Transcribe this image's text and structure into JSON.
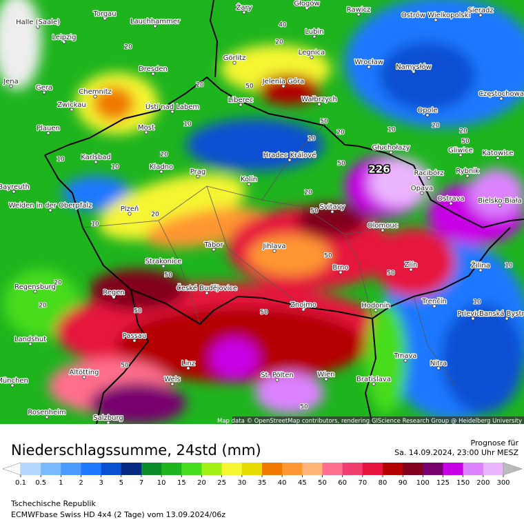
{
  "map": {
    "cities": [
      "Halle (Saale)",
      "Torgau",
      "Lauchhammer",
      "Żary",
      "Głogów",
      "Rawicz",
      "Ostrów Wielkopolski",
      "Sieradz",
      "Leipzig",
      "Lubin",
      "Legnica",
      "Görlitz",
      "Wrocław",
      "Namysłów",
      "Dresden",
      "Jena",
      "Gera",
      "Chemnitz",
      "Jelenia Góra",
      "Zwickau",
      "Liberec",
      "Wałbrzych",
      "Ústí nad Labem",
      "Częstochowa",
      "Opole",
      "Plauen",
      "Most",
      "Hradec Králové",
      "Głuchołazy",
      "Gliwice",
      "Katowice",
      "Karlsbad",
      "Kladno",
      "Prag",
      "Racibórz",
      "Rybnik",
      "Kolín",
      "Opava",
      "Bayreuth",
      "Weiden in der Oberpfalz",
      "Plzeň",
      "Svitavy",
      "Ostrava",
      "Bielsko-Biała",
      "Olomouc",
      "Tábor",
      "Jihlava",
      "Brno",
      "Zlín",
      "Žilina",
      "Strakonice",
      "Regensburg",
      "České Budějovice",
      "Regen",
      "Znojmo",
      "Hodonín",
      "Trenčín",
      "Prievidza",
      "Banská Bystrica",
      "Passau",
      "Landshut",
      "Trnava",
      "Nitra",
      "Linz",
      "Altötting",
      "Wels",
      "St. Pölten",
      "Wien",
      "Bratislava",
      "München",
      "Rosenheim",
      "Salzburg"
    ],
    "contour_labels": [
      20,
      20,
      40,
      20,
      50,
      10,
      10,
      20,
      50,
      10,
      10,
      20,
      50,
      226,
      10,
      20,
      20,
      50,
      20,
      10,
      50,
      50,
      50,
      20,
      20,
      50,
      50,
      50,
      50,
      10,
      10,
      20,
      50
    ],
    "attribution": "Map data © OpenStreetMap contributors, rendering GIScience Research Group @ Heidelberg University"
  },
  "header": {
    "title": "Niederschlagssumme, 24std (mm)",
    "forecast_label": "Prognose für",
    "forecast_time": "Sa. 14.09.2024, 23:00 Uhr MESZ"
  },
  "legend": {
    "ticks": [
      0.1,
      0.5,
      1,
      2,
      3,
      5,
      7,
      10,
      15,
      20,
      25,
      30,
      35,
      40,
      45,
      50,
      60,
      70,
      80,
      90,
      100,
      125,
      150,
      200,
      300
    ],
    "below_color": "#ffffff",
    "colors": [
      "#b4d7ff",
      "#78b9ff",
      "#4b9bff",
      "#1e78ff",
      "#0a50d2",
      "#062a82",
      "#0a8c28",
      "#1eb41e",
      "#46dc1e",
      "#a0f014",
      "#f5f532",
      "#e6dc00",
      "#f07800",
      "#ff9632",
      "#ffb478",
      "#ff6e8c",
      "#f03c6e",
      "#e6143c",
      "#b40000",
      "#82001e",
      "#78006e",
      "#c800e6",
      "#dc82ff",
      "#ebb4ff",
      "#f8e6ff"
    ],
    "above_color": "#bbbbbb"
  },
  "footer": {
    "region": "Tschechische Republik",
    "model": "ECMWFbase Swiss HD 4x4 (2 Tage) vom 13.09.2024/06z"
  }
}
